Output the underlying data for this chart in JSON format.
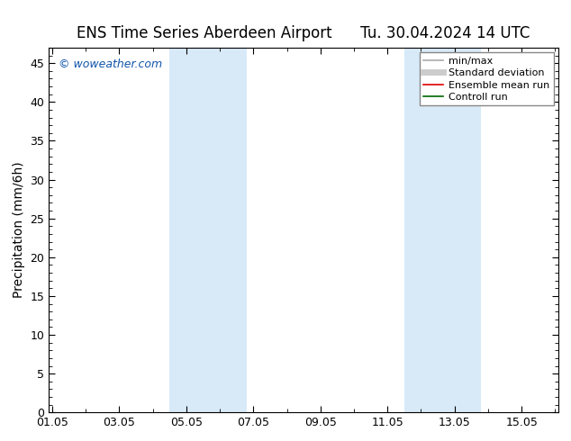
{
  "title_left": "ENS Time Series Aberdeen Airport",
  "title_right": "Tu. 30.04.2024 14 UTC",
  "ylabel": "Precipitation (mm/6h)",
  "watermark": "© woweather.com",
  "ylim": [
    0,
    47
  ],
  "yticks": [
    0,
    5,
    10,
    15,
    20,
    25,
    30,
    35,
    40,
    45
  ],
  "xtick_labels": [
    "01.05",
    "03.05",
    "05.05",
    "07.05",
    "09.05",
    "11.05",
    "13.05",
    "15.05"
  ],
  "xtick_positions": [
    0,
    2,
    4,
    6,
    8,
    10,
    12,
    14
  ],
  "xlim": [
    -0.1,
    15.1
  ],
  "shaded_bands": [
    {
      "xmin": 3.5,
      "xmax": 5.8,
      "color": "#d8eaf8"
    },
    {
      "xmin": 10.5,
      "xmax": 12.8,
      "color": "#d8eaf8"
    }
  ],
  "legend_items": [
    {
      "label": "min/max",
      "color": "#aaaaaa",
      "lw": 1.2,
      "linestyle": "-"
    },
    {
      "label": "Standard deviation",
      "color": "#cccccc",
      "lw": 5,
      "linestyle": "-"
    },
    {
      "label": "Ensemble mean run",
      "color": "#dd0000",
      "lw": 1.2,
      "linestyle": "-"
    },
    {
      "label": "Controll run",
      "color": "#006600",
      "lw": 1.2,
      "linestyle": "-"
    }
  ],
  "bg_color": "#ffffff",
  "plot_bg_color": "#ffffff",
  "title_fontsize": 12,
  "axis_label_fontsize": 10,
  "tick_fontsize": 9,
  "legend_fontsize": 8,
  "watermark_color": "#1155aa",
  "watermark_fontsize": 9
}
